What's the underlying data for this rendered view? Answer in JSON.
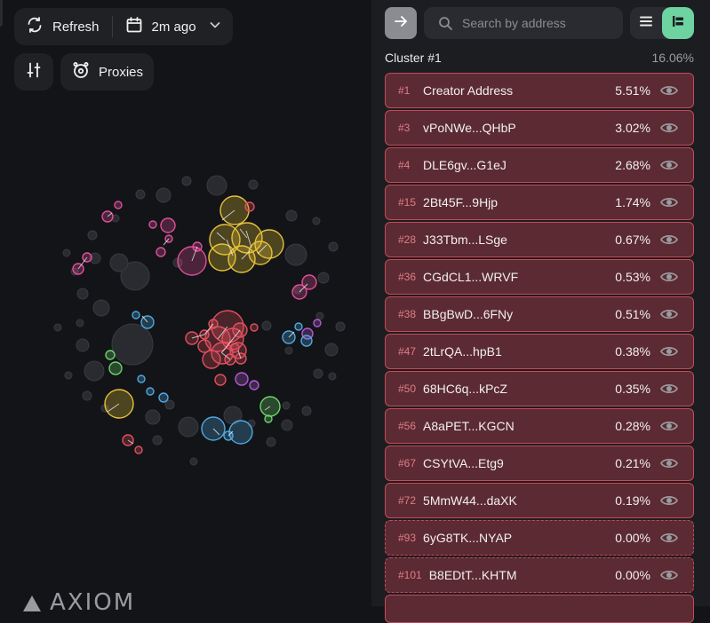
{
  "toolbar": {
    "refresh_label": "Refresh",
    "time_label": "2m ago",
    "proxies_label": "Proxies"
  },
  "logo": {
    "text": "AXIOM"
  },
  "sidebar": {
    "search_placeholder": "Search by address",
    "cluster_title": "Cluster #1",
    "cluster_percent": "16.06%",
    "rows": [
      {
        "rank": "#1",
        "address": "Creator Address",
        "percent": "5.51%",
        "dashed": false
      },
      {
        "rank": "#3",
        "address": "vPoNWe...QHbP",
        "percent": "3.02%",
        "dashed": false
      },
      {
        "rank": "#4",
        "address": "DLE6gv...G1eJ",
        "percent": "2.68%",
        "dashed": false
      },
      {
        "rank": "#15",
        "address": "2Bt45F...9Hjp",
        "percent": "1.74%",
        "dashed": false
      },
      {
        "rank": "#28",
        "address": "J33Tbm...LSge",
        "percent": "0.67%",
        "dashed": false
      },
      {
        "rank": "#36",
        "address": "CGdCL1...WRVF",
        "percent": "0.53%",
        "dashed": false
      },
      {
        "rank": "#38",
        "address": "BBgBwD...6FNy",
        "percent": "0.51%",
        "dashed": false
      },
      {
        "rank": "#47",
        "address": "2tLrQA...hpB1",
        "percent": "0.38%",
        "dashed": false
      },
      {
        "rank": "#50",
        "address": "68HC6q...kPcZ",
        "percent": "0.35%",
        "dashed": false
      },
      {
        "rank": "#56",
        "address": "A8aPET...KGCN",
        "percent": "0.28%",
        "dashed": false
      },
      {
        "rank": "#67",
        "address": "CSYtVA...Etg9",
        "percent": "0.21%",
        "dashed": false
      },
      {
        "rank": "#72",
        "address": "5MmW44...daXK",
        "percent": "0.19%",
        "dashed": false
      },
      {
        "rank": "#93",
        "address": "6yG8TK...NYAP",
        "percent": "0.00%",
        "dashed": true
      },
      {
        "rank": "#101",
        "address": "B8EDtT...KHTM",
        "percent": "0.00%",
        "dashed": true
      }
    ]
  },
  "colors": {
    "row_bg": "#5c2a32",
    "row_border": "#c44a5a",
    "accent_green": "#6dd3a0",
    "bubble_yellow": "#e6c23a",
    "bubble_red": "#e0505f",
    "bubble_pink": "#e04f9a",
    "bubble_blue": "#4fa8e0",
    "bubble_green": "#6cd36c",
    "bubble_purple": "#b45ad6",
    "bubble_grey": "#2a2b30"
  }
}
